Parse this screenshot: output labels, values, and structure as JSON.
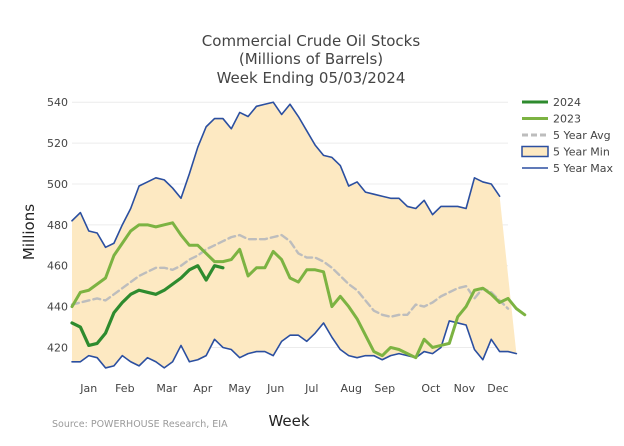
{
  "chart_data": {
    "type": "line",
    "title_lines": [
      "Commercial Crude Oil Stocks",
      "(Millions of Barrels)",
      "Week Ending 05/03/2024"
    ],
    "xlabel": "Week",
    "ylabel": "Millions",
    "source": "Source: POWERHOUSE Research, EIA",
    "x_unit": "week",
    "xlim": [
      1,
      53
    ],
    "ylim": [
      408,
      545
    ],
    "y_ticks": [
      420,
      440,
      460,
      480,
      500,
      520,
      540
    ],
    "month_ticks": [
      {
        "label": "Jan",
        "week": 3
      },
      {
        "label": "Feb",
        "week": 7.3
      },
      {
        "label": "Mar",
        "week": 12.3
      },
      {
        "label": "Apr",
        "week": 16.6
      },
      {
        "label": "May",
        "week": 21
      },
      {
        "label": "Jun",
        "week": 25.3
      },
      {
        "label": "Jul",
        "week": 29.6
      },
      {
        "label": "Aug",
        "week": 34.3
      },
      {
        "label": "Sep",
        "week": 38.3
      },
      {
        "label": "Oct",
        "week": 43.8
      },
      {
        "label": "Nov",
        "week": 47.8
      },
      {
        "label": "Dec",
        "week": 51.8
      }
    ],
    "legend_position": "right",
    "grid": true,
    "series": [
      {
        "name": "5 Year Min",
        "role": "band-low",
        "color": "#2b4fa0",
        "values": [
          413,
          413,
          416,
          415,
          410,
          411,
          416,
          413,
          411,
          415,
          413,
          410,
          413,
          421,
          413,
          414,
          416,
          424,
          420,
          419,
          415,
          417,
          418,
          418,
          416,
          423,
          426,
          426,
          423,
          427,
          432,
          425,
          419,
          416,
          415,
          416,
          416,
          414,
          416,
          417,
          416,
          415,
          418,
          417,
          420,
          433,
          432,
          431,
          419,
          414,
          424,
          418,
          418,
          417
        ]
      },
      {
        "name": "5 Year Max",
        "role": "band-high",
        "color": "#2b4fa0",
        "values": [
          482,
          486,
          477,
          476,
          469,
          471,
          480,
          488,
          499,
          501,
          503,
          502,
          498,
          493,
          505,
          518,
          528,
          532,
          532,
          527,
          535,
          533,
          538,
          539,
          540,
          534,
          539,
          533,
          526,
          519,
          514,
          513,
          509,
          499,
          501,
          496,
          495,
          494,
          493,
          493,
          489,
          488,
          492,
          485,
          489,
          489,
          489,
          488,
          503,
          501,
          500,
          494
        ]
      },
      {
        "name": "5 Year Avg",
        "role": "line",
        "dash": true,
        "color": "#bdbdbd",
        "values": [
          441,
          442,
          443,
          444,
          443,
          446,
          449,
          452,
          455,
          457,
          459,
          459,
          458,
          460,
          463,
          465,
          468,
          470,
          472,
          474,
          475,
          473,
          473,
          473,
          474,
          475,
          472,
          466,
          464,
          464,
          462,
          459,
          455,
          451,
          448,
          443,
          438,
          436,
          435,
          436,
          436,
          441,
          440,
          442,
          445,
          447,
          449,
          450,
          444,
          449,
          447,
          443,
          439
        ]
      },
      {
        "name": "2023",
        "role": "line",
        "color": "#7cb342",
        "values": [
          440,
          447,
          448,
          451,
          454,
          465,
          471,
          477,
          480,
          480,
          479,
          480,
          481,
          475,
          470,
          470,
          466,
          462,
          462,
          463,
          468,
          455,
          459,
          459,
          467,
          463,
          454,
          452,
          458,
          458,
          457,
          440,
          445,
          440,
          434,
          426,
          418,
          416,
          420,
          419,
          417,
          415,
          424,
          420,
          421,
          422,
          435,
          440,
          448,
          449,
          446,
          442,
          444,
          439,
          436
        ]
      },
      {
        "name": "2024",
        "role": "line",
        "color": "#2e8b2e",
        "values": [
          432,
          430,
          421,
          422,
          427,
          437,
          442,
          446,
          448,
          447,
          446,
          448,
          451,
          454,
          458,
          460,
          453,
          460,
          459
        ]
      }
    ]
  }
}
